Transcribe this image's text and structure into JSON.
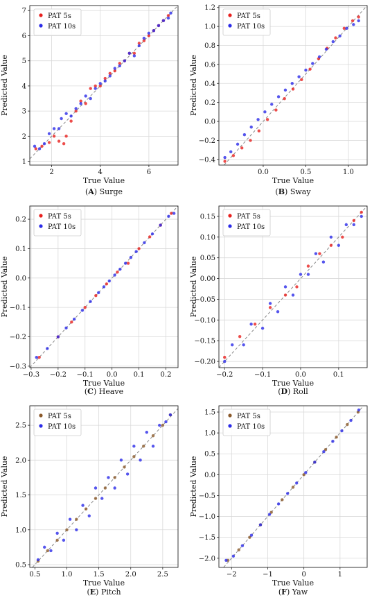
{
  "chart_data": [
    {
      "type": "scatter",
      "caption_letter": "A",
      "caption_name": "Surge",
      "xlabel": "True Value",
      "ylabel": "Predicted Value",
      "xlim": [
        1.1,
        7.2
      ],
      "ylim": [
        0.85,
        7.2
      ],
      "xticks": [
        2,
        4,
        6
      ],
      "yticks": [
        1,
        2,
        3,
        4,
        5,
        6,
        7
      ],
      "xtick_labels": [
        "2",
        "4",
        "6"
      ],
      "ytick_labels": [
        "1",
        "2",
        "3",
        "4",
        "5",
        "6",
        "7"
      ],
      "grid": true,
      "legend_position": "top-left",
      "reference_line": true,
      "series": [
        {
          "name": "PAT 5s",
          "color": "#e8201e",
          "x": [
            1.35,
            1.6,
            1.9,
            2.1,
            2.3,
            2.5,
            2.6,
            2.8,
            3.0,
            3.2,
            3.4,
            3.6,
            3.8,
            4.0,
            4.2,
            4.4,
            4.6,
            4.8,
            5.0,
            5.2,
            5.4,
            5.6,
            5.8,
            6.0,
            6.2,
            6.4,
            6.6,
            6.8
          ],
          "y": [
            1.5,
            1.6,
            1.75,
            2.0,
            1.8,
            1.7,
            2.0,
            2.6,
            3.0,
            3.4,
            3.3,
            3.9,
            4.0,
            4.0,
            4.3,
            4.5,
            4.6,
            4.9,
            5.0,
            5.3,
            5.3,
            5.7,
            5.8,
            6.0,
            6.2,
            6.4,
            6.6,
            6.8
          ]
        },
        {
          "name": "PAT 10s",
          "color": "#2b2be8",
          "x": [
            1.3,
            1.5,
            1.7,
            1.9,
            2.1,
            2.3,
            2.4,
            2.6,
            2.8,
            3.0,
            3.2,
            3.4,
            3.6,
            3.8,
            4.0,
            4.2,
            4.4,
            4.6,
            4.8,
            5.0,
            5.2,
            5.4,
            5.6,
            5.8,
            6.0,
            6.2,
            6.4,
            6.6,
            6.8,
            6.9
          ],
          "y": [
            1.6,
            1.5,
            1.7,
            2.1,
            2.3,
            2.3,
            2.7,
            2.9,
            2.8,
            3.1,
            3.3,
            3.6,
            3.5,
            3.9,
            4.1,
            4.2,
            4.4,
            4.7,
            4.8,
            5.0,
            5.3,
            5.2,
            5.6,
            5.9,
            6.1,
            6.2,
            6.4,
            6.6,
            6.7,
            6.9
          ]
        }
      ]
    },
    {
      "type": "scatter",
      "caption_letter": "B",
      "caption_name": "Sway",
      "xlabel": "True Value",
      "ylabel": "Predicted Value",
      "xlim": [
        -0.52,
        1.22
      ],
      "ylim": [
        -0.46,
        1.22
      ],
      "xticks": [
        0.0,
        0.5,
        1.0
      ],
      "yticks": [
        -0.4,
        -0.2,
        0.0,
        0.2,
        0.4,
        0.6,
        0.8,
        1.0,
        1.2
      ],
      "xtick_labels": [
        "0.0",
        "0.5",
        "1.0"
      ],
      "ytick_labels": [
        "−0.4",
        "−0.2",
        "0.0",
        "0.2",
        "0.4",
        "0.6",
        "0.8",
        "1.0",
        "1.2"
      ],
      "grid": true,
      "legend_position": "top-left",
      "reference_line": true,
      "series": [
        {
          "name": "PAT 5s",
          "color": "#e8201e",
          "x": [
            -0.45,
            -0.35,
            -0.25,
            -0.15,
            -0.05,
            0.05,
            0.15,
            0.25,
            0.35,
            0.45,
            0.55,
            0.65,
            0.75,
            0.85,
            0.95,
            1.05,
            1.12
          ],
          "y": [
            -0.42,
            -0.36,
            -0.28,
            -0.2,
            -0.1,
            0.02,
            0.12,
            0.24,
            0.34,
            0.44,
            0.55,
            0.66,
            0.77,
            0.88,
            0.98,
            1.06,
            1.1
          ]
        },
        {
          "name": "PAT 10s",
          "color": "#2b2be8",
          "x": [
            -0.45,
            -0.38,
            -0.3,
            -0.22,
            -0.14,
            -0.06,
            0.02,
            0.1,
            0.18,
            0.26,
            0.34,
            0.42,
            0.5,
            0.58,
            0.66,
            0.74,
            0.82,
            0.9,
            0.98,
            1.06,
            1.12
          ],
          "y": [
            -0.38,
            -0.32,
            -0.24,
            -0.14,
            -0.06,
            0.02,
            0.1,
            0.18,
            0.26,
            0.33,
            0.4,
            0.47,
            0.54,
            0.61,
            0.68,
            0.76,
            0.84,
            0.9,
            0.98,
            1.02,
            1.06
          ]
        }
      ]
    },
    {
      "type": "scatter",
      "caption_letter": "C",
      "caption_name": "Heave",
      "xlabel": "True Value",
      "ylabel": "Predicted Value",
      "xlim": [
        -0.305,
        0.245
      ],
      "ylim": [
        -0.305,
        0.245
      ],
      "xticks": [
        -0.3,
        -0.2,
        -0.1,
        0.0,
        0.1,
        0.2
      ],
      "yticks": [
        -0.3,
        -0.2,
        -0.1,
        0.0,
        0.1,
        0.2
      ],
      "xtick_labels": [
        "−0.3",
        "−0.2",
        "−0.1",
        "0.0",
        "0.1",
        "0.2"
      ],
      "ytick_labels": [
        "−0.3",
        "−0.2",
        "−0.1",
        "0.0",
        "0.1",
        "0.2"
      ],
      "grid": true,
      "legend_position": "top-left",
      "reference_line": true,
      "series": [
        {
          "name": "PAT 5s",
          "color": "#e8201e",
          "x": [
            -0.27,
            -0.2,
            -0.15,
            -0.1,
            -0.06,
            -0.02,
            0.02,
            0.06,
            0.1,
            0.14,
            0.18,
            0.22
          ],
          "y": [
            -0.27,
            -0.2,
            -0.15,
            -0.1,
            -0.06,
            -0.02,
            0.02,
            0.05,
            0.1,
            0.14,
            0.18,
            0.22
          ]
        },
        {
          "name": "PAT 10s",
          "color": "#2b2be8",
          "x": [
            -0.28,
            -0.24,
            -0.2,
            -0.17,
            -0.14,
            -0.11,
            -0.08,
            -0.05,
            -0.03,
            -0.01,
            0.01,
            0.03,
            0.05,
            0.07,
            0.09,
            0.12,
            0.15,
            0.18,
            0.21,
            0.23
          ],
          "y": [
            -0.27,
            -0.24,
            -0.2,
            -0.17,
            -0.14,
            -0.11,
            -0.08,
            -0.05,
            -0.03,
            -0.01,
            0.01,
            0.03,
            0.05,
            0.07,
            0.09,
            0.12,
            0.15,
            0.18,
            0.21,
            0.22
          ]
        }
      ]
    },
    {
      "type": "scatter",
      "caption_letter": "D",
      "caption_name": "Roll",
      "xlabel": "True Value",
      "ylabel": "Predicted Value",
      "xlim": [
        -0.215,
        0.175
      ],
      "ylim": [
        -0.215,
        0.175
      ],
      "xticks": [
        -0.2,
        -0.1,
        0.0,
        0.1
      ],
      "yticks": [
        -0.2,
        -0.15,
        -0.1,
        -0.05,
        0.0,
        0.05,
        0.1,
        0.15
      ],
      "xtick_labels": [
        "−0.2",
        "−0.1",
        "0.0",
        "0.1"
      ],
      "ytick_labels": [
        "−0.20",
        "−0.15",
        "−0.10",
        "−0.05",
        "0.00",
        "0.05",
        "0.10",
        "0.15"
      ],
      "grid": true,
      "legend_position": "top-left",
      "reference_line": true,
      "series": [
        {
          "name": "PAT 5s",
          "color": "#e8201e",
          "x": [
            -0.2,
            -0.16,
            -0.12,
            -0.08,
            -0.04,
            -0.01,
            0.02,
            0.05,
            0.08,
            0.11,
            0.14,
            0.16
          ],
          "y": [
            -0.19,
            -0.14,
            -0.11,
            -0.07,
            -0.04,
            -0.02,
            0.03,
            0.06,
            0.08,
            0.1,
            0.14,
            0.16
          ]
        },
        {
          "name": "PAT 10s",
          "color": "#2b2be8",
          "x": [
            -0.2,
            -0.18,
            -0.15,
            -0.13,
            -0.1,
            -0.08,
            -0.06,
            -0.04,
            -0.02,
            0.0,
            0.02,
            0.04,
            0.06,
            0.08,
            0.1,
            0.12,
            0.14,
            0.16
          ],
          "y": [
            -0.2,
            -0.16,
            -0.16,
            -0.11,
            -0.12,
            -0.06,
            -0.08,
            -0.02,
            -0.04,
            0.01,
            0.01,
            0.06,
            0.04,
            0.1,
            0.08,
            0.13,
            0.13,
            0.15
          ]
        }
      ]
    },
    {
      "type": "scatter",
      "caption_letter": "E",
      "caption_name": "Pitch",
      "xlabel": "True Value",
      "ylabel": "Predicted Value",
      "xlim": [
        0.42,
        2.74
      ],
      "ylim": [
        0.46,
        2.78
      ],
      "xticks": [
        0.5,
        1.0,
        1.5,
        2.0,
        2.5
      ],
      "yticks": [
        0.5,
        1.0,
        1.5,
        2.0,
        2.5
      ],
      "xtick_labels": [
        "0.5",
        "1.0",
        "1.5",
        "2.0",
        "2.5"
      ],
      "ytick_labels": [
        "0.5",
        "1.0",
        "1.5",
        "2.0",
        "2.5"
      ],
      "grid": true,
      "legend_position": "top-left",
      "reference_line": true,
      "series": [
        {
          "name": "PAT 5s",
          "color": "#8b5a2b",
          "x": [
            0.55,
            0.7,
            0.85,
            1.0,
            1.15,
            1.3,
            1.45,
            1.6,
            1.75,
            1.9,
            2.05,
            2.2,
            2.35,
            2.5,
            2.62
          ],
          "y": [
            0.55,
            0.7,
            0.85,
            1.0,
            1.15,
            1.3,
            1.45,
            1.6,
            1.75,
            1.9,
            2.05,
            2.2,
            2.35,
            2.5,
            2.65
          ]
        },
        {
          "name": "PAT 10s",
          "color": "#2b2be8",
          "x": [
            0.55,
            0.65,
            0.75,
            0.85,
            0.95,
            1.05,
            1.15,
            1.25,
            1.35,
            1.45,
            1.55,
            1.65,
            1.75,
            1.85,
            1.95,
            2.05,
            2.15,
            2.25,
            2.35,
            2.45,
            2.55,
            2.62
          ],
          "y": [
            0.57,
            0.75,
            0.7,
            0.95,
            0.85,
            1.15,
            1.0,
            1.35,
            1.2,
            1.6,
            1.45,
            1.75,
            1.6,
            2.0,
            1.8,
            2.2,
            2.0,
            2.4,
            2.2,
            2.5,
            2.55,
            2.65
          ]
        }
      ]
    },
    {
      "type": "scatter",
      "caption_letter": "F",
      "caption_name": "Yaw",
      "xlabel": "True Value",
      "ylabel": "Predicted Value",
      "xlim": [
        -2.35,
        1.75
      ],
      "ylim": [
        -2.22,
        1.65
      ],
      "xticks": [
        -2,
        -1,
        0,
        1
      ],
      "yticks": [
        -2.0,
        -1.5,
        -1.0,
        -0.5,
        0.0,
        0.5,
        1.0,
        1.5
      ],
      "xtick_labels": [
        "−2",
        "−1",
        "0",
        "1"
      ],
      "ytick_labels": [
        "−2.0",
        "−1.5",
        "−1.0",
        "−0.5",
        "0.0",
        "0.5",
        "1.0",
        "1.5"
      ],
      "grid": true,
      "legend_position": "top-left",
      "reference_line": true,
      "series": [
        {
          "name": "PAT 5s",
          "color": "#8b5a2b",
          "x": [
            -2.1,
            -1.8,
            -1.5,
            -1.2,
            -0.9,
            -0.6,
            -0.3,
            0.0,
            0.3,
            0.6,
            0.9,
            1.2,
            1.5
          ],
          "y": [
            -2.05,
            -1.8,
            -1.5,
            -1.2,
            -0.9,
            -0.6,
            -0.3,
            0.0,
            0.3,
            0.6,
            0.9,
            1.2,
            1.5
          ]
        },
        {
          "name": "PAT 10s",
          "color": "#2b2be8",
          "x": [
            -2.15,
            -1.95,
            -1.7,
            -1.45,
            -1.2,
            -0.95,
            -0.7,
            -0.45,
            -0.2,
            0.05,
            0.3,
            0.55,
            0.8,
            1.05,
            1.3,
            1.52
          ],
          "y": [
            -2.05,
            -1.95,
            -1.7,
            -1.45,
            -1.2,
            -0.95,
            -0.7,
            -0.45,
            -0.2,
            0.05,
            0.3,
            0.55,
            0.8,
            1.05,
            1.3,
            1.55
          ]
        }
      ]
    }
  ]
}
